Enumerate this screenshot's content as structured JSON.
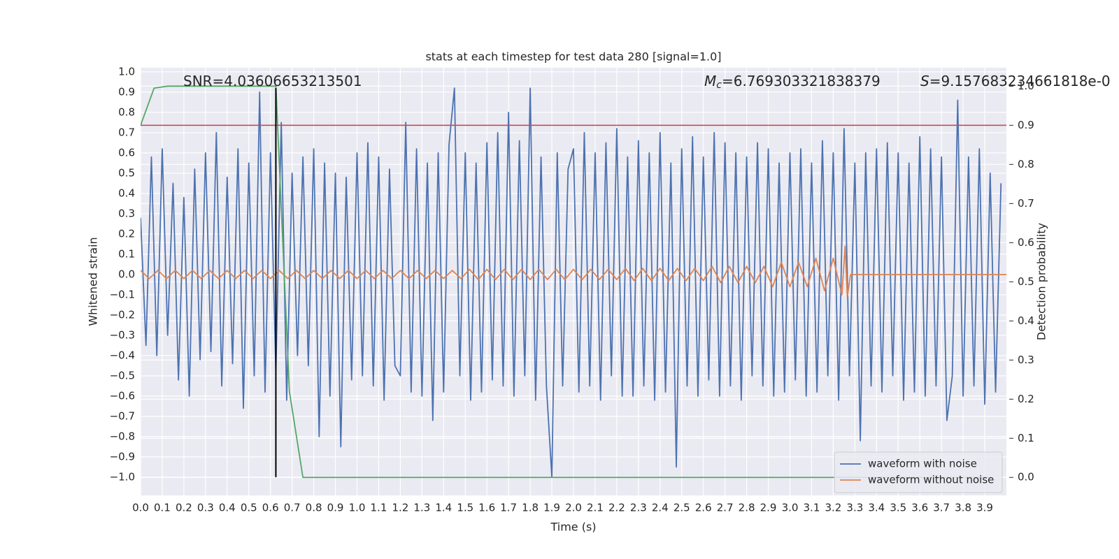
{
  "chart_data": {
    "type": "line",
    "title": "stats at each timestep for test data 280 [signal=1.0]",
    "xlabel": "Time (s)",
    "ylabel": "Whitened strain",
    "y2label": "Detection probability",
    "grid": true,
    "legend": "lower right",
    "xlim": [
      0,
      4.0
    ],
    "ylim": [
      -1.09,
      1.02
    ],
    "y2lim": [
      -0.046,
      1.047
    ],
    "xticks": [
      {
        "value": 0,
        "label": "0.0"
      },
      {
        "value": 0.1,
        "label": "0.1"
      },
      {
        "value": 0.2,
        "label": "0.2"
      },
      {
        "value": 0.3,
        "label": "0.3"
      },
      {
        "value": 0.4,
        "label": "0.4"
      },
      {
        "value": 0.5,
        "label": "0.5"
      },
      {
        "value": 0.6,
        "label": "0.6"
      },
      {
        "value": 0.7,
        "label": "0.7"
      },
      {
        "value": 0.8,
        "label": "0.8"
      },
      {
        "value": 0.9,
        "label": "0.9"
      },
      {
        "value": 1,
        "label": "1.0"
      },
      {
        "value": 1.1,
        "label": "1.1"
      },
      {
        "value": 1.2,
        "label": "1.2"
      },
      {
        "value": 1.3,
        "label": "1.3"
      },
      {
        "value": 1.4,
        "label": "1.4"
      },
      {
        "value": 1.5,
        "label": "1.5"
      },
      {
        "value": 1.6,
        "label": "1.6"
      },
      {
        "value": 1.7,
        "label": "1.7"
      },
      {
        "value": 1.8,
        "label": "1.8"
      },
      {
        "value": 1.9,
        "label": "1.9"
      },
      {
        "value": 2,
        "label": "2.0"
      },
      {
        "value": 2.1,
        "label": "2.1"
      },
      {
        "value": 2.2,
        "label": "2.2"
      },
      {
        "value": 2.3,
        "label": "2.3"
      },
      {
        "value": 2.4,
        "label": "2.4"
      },
      {
        "value": 2.5,
        "label": "2.5"
      },
      {
        "value": 2.6,
        "label": "2.6"
      },
      {
        "value": 2.7,
        "label": "2.7"
      },
      {
        "value": 2.8,
        "label": "2.8"
      },
      {
        "value": 2.9,
        "label": "2.9"
      },
      {
        "value": 3,
        "label": "3.0"
      },
      {
        "value": 3.1,
        "label": "3.1"
      },
      {
        "value": 3.2,
        "label": "3.2"
      },
      {
        "value": 3.3,
        "label": "3.3"
      },
      {
        "value": 3.4,
        "label": "3.4"
      },
      {
        "value": 3.5,
        "label": "3.5"
      },
      {
        "value": 3.6,
        "label": "3.6"
      },
      {
        "value": 3.7,
        "label": "3.7"
      },
      {
        "value": 3.8,
        "label": "3.8"
      },
      {
        "value": 3.9,
        "label": "3.9"
      }
    ],
    "yticks": [
      {
        "value": -1,
        "label": "−1.0"
      },
      {
        "value": -0.9,
        "label": "−0.9"
      },
      {
        "value": -0.8,
        "label": "−0.8"
      },
      {
        "value": -0.7,
        "label": "−0.7"
      },
      {
        "value": -0.6,
        "label": "−0.6"
      },
      {
        "value": -0.5,
        "label": "−0.5"
      },
      {
        "value": -0.4,
        "label": "−0.4"
      },
      {
        "value": -0.3,
        "label": "−0.3"
      },
      {
        "value": -0.2,
        "label": "−0.2"
      },
      {
        "value": -0.1,
        "label": "−0.1"
      },
      {
        "value": 0,
        "label": "0.0"
      },
      {
        "value": 0.1,
        "label": "0.1"
      },
      {
        "value": 0.2,
        "label": "0.2"
      },
      {
        "value": 0.3,
        "label": "0.3"
      },
      {
        "value": 0.4,
        "label": "0.4"
      },
      {
        "value": 0.5,
        "label": "0.5"
      },
      {
        "value": 0.6,
        "label": "0.6"
      },
      {
        "value": 0.7,
        "label": "0.7"
      },
      {
        "value": 0.8,
        "label": "0.8"
      },
      {
        "value": 0.9,
        "label": "0.9"
      },
      {
        "value": 1,
        "label": "1.0"
      }
    ],
    "y2ticks": [
      {
        "value": 0,
        "label": "0.0"
      },
      {
        "value": 0.1,
        "label": "0.1"
      },
      {
        "value": 0.2,
        "label": "0.2"
      },
      {
        "value": 0.3,
        "label": "0.3"
      },
      {
        "value": 0.4,
        "label": "0.4"
      },
      {
        "value": 0.5,
        "label": "0.5"
      },
      {
        "value": 0.6,
        "label": "0.6"
      },
      {
        "value": 0.7,
        "label": "0.7"
      },
      {
        "value": 0.8,
        "label": "0.8"
      },
      {
        "value": 0.9,
        "label": "0.9"
      },
      {
        "value": 1,
        "label": "1.0"
      }
    ],
    "annotations": [
      {
        "text": "SNR=4.03606653213501"
      },
      {
        "symbol": "M",
        "subscript": "c",
        "text": "=6.769303321838379"
      },
      {
        "symbol": "S",
        "text": "=9.157683234661818e-0"
      }
    ],
    "series": [
      {
        "name": "waveform with noise",
        "color": "#4c72b0",
        "x": [
          0,
          0.025,
          0.05,
          0.075,
          0.1,
          0.125,
          0.15,
          0.175,
          0.2,
          0.225,
          0.25,
          0.275,
          0.3,
          0.325,
          0.35,
          0.375,
          0.4,
          0.425,
          0.45,
          0.475,
          0.5,
          0.525,
          0.55,
          0.575,
          0.6,
          0.625,
          0.65,
          0.675,
          0.7,
          0.725,
          0.75,
          0.775,
          0.8,
          0.825,
          0.85,
          0.875,
          0.9,
          0.925,
          0.95,
          0.975,
          1,
          1.025,
          1.05,
          1.075,
          1.1,
          1.125,
          1.15,
          1.175,
          1.2,
          1.225,
          1.25,
          1.275,
          1.3,
          1.325,
          1.35,
          1.375,
          1.4,
          1.425,
          1.45,
          1.475,
          1.5,
          1.525,
          1.55,
          1.575,
          1.6,
          1.625,
          1.65,
          1.675,
          1.7,
          1.725,
          1.75,
          1.775,
          1.8,
          1.825,
          1.85,
          1.875,
          1.9,
          1.925,
          1.95,
          1.975,
          2,
          2.025,
          2.05,
          2.075,
          2.1,
          2.125,
          2.15,
          2.175,
          2.2,
          2.225,
          2.25,
          2.275,
          2.3,
          2.325,
          2.35,
          2.375,
          2.4,
          2.425,
          2.45,
          2.475,
          2.5,
          2.525,
          2.55,
          2.575,
          2.6,
          2.625,
          2.65,
          2.675,
          2.7,
          2.725,
          2.75,
          2.775,
          2.8,
          2.825,
          2.85,
          2.875,
          2.9,
          2.925,
          2.95,
          2.975,
          3,
          3.025,
          3.05,
          3.075,
          3.1,
          3.125,
          3.15,
          3.175,
          3.2,
          3.225,
          3.25,
          3.275,
          3.3,
          3.325,
          3.35,
          3.375,
          3.4,
          3.425,
          3.45,
          3.475,
          3.5,
          3.525,
          3.55,
          3.575,
          3.6,
          3.625,
          3.65,
          3.675,
          3.7,
          3.725,
          3.75,
          3.775,
          3.8,
          3.825,
          3.85,
          3.875,
          3.9,
          3.925,
          3.95,
          3.975
        ],
        "values": [
          0.28,
          -0.35,
          0.58,
          -0.4,
          0.62,
          -0.3,
          0.45,
          -0.52,
          0.38,
          -0.6,
          0.52,
          -0.42,
          0.6,
          -0.38,
          0.7,
          -0.55,
          0.48,
          -0.44,
          0.62,
          -0.66,
          0.55,
          -0.5,
          0.9,
          -0.58,
          0.6,
          -0.48,
          0.75,
          -0.62,
          0.5,
          -0.4,
          0.58,
          -0.45,
          0.62,
          -0.8,
          0.55,
          -0.6,
          0.5,
          -0.85,
          0.48,
          -0.52,
          0.6,
          -0.5,
          0.65,
          -0.55,
          0.58,
          -0.62,
          0.52,
          -0.45,
          -0.5,
          0.75,
          -0.58,
          0.62,
          -0.6,
          0.55,
          -0.72,
          0.6,
          -0.58,
          0.64,
          0.92,
          -0.5,
          0.6,
          -0.62,
          0.55,
          -0.58,
          0.65,
          -0.52,
          0.7,
          -0.55,
          0.8,
          -0.6,
          0.66,
          -0.5,
          0.92,
          -0.62,
          0.58,
          -0.55,
          -1.0,
          0.6,
          -0.55,
          0.52,
          0.62,
          -0.58,
          0.7,
          -0.55,
          0.6,
          -0.62,
          0.65,
          -0.5,
          0.72,
          -0.6,
          0.58,
          -0.6,
          0.66,
          -0.55,
          0.6,
          -0.62,
          0.7,
          -0.58,
          0.55,
          -0.95,
          0.62,
          -0.55,
          0.68,
          -0.6,
          0.58,
          -0.52,
          0.7,
          -0.6,
          0.65,
          -0.55,
          0.6,
          -0.62,
          0.58,
          -0.5,
          0.65,
          -0.55,
          0.62,
          -0.6,
          0.55,
          -0.58,
          0.6,
          -0.52,
          0.62,
          -0.6,
          0.55,
          -0.58,
          0.66,
          -0.5,
          0.6,
          -0.62,
          0.72,
          -0.5,
          0.55,
          -0.82,
          0.6,
          -0.55,
          0.62,
          -0.58,
          0.65,
          -0.5,
          0.6,
          -0.62,
          0.55,
          -0.58,
          0.68,
          -0.6,
          0.62,
          -0.55,
          0.58,
          -0.72,
          -0.5,
          0.86,
          -0.6,
          0.58,
          -0.55,
          0.62,
          -0.64,
          0.5,
          -0.58,
          0.45
        ]
      },
      {
        "name": "waveform without noise",
        "color": "#dd8452",
        "x": [
          0,
          0.04,
          0.08,
          0.12,
          0.16,
          0.2,
          0.24,
          0.28,
          0.32,
          0.36,
          0.4,
          0.44,
          0.48,
          0.52,
          0.56,
          0.6,
          0.64,
          0.68,
          0.72,
          0.76,
          0.8,
          0.84,
          0.88,
          0.92,
          0.96,
          1,
          1.04,
          1.08,
          1.12,
          1.16,
          1.2,
          1.24,
          1.28,
          1.32,
          1.36,
          1.4,
          1.44,
          1.48,
          1.52,
          1.56,
          1.6,
          1.64,
          1.68,
          1.72,
          1.76,
          1.8,
          1.84,
          1.88,
          1.92,
          1.96,
          2,
          2.04,
          2.08,
          2.12,
          2.16,
          2.2,
          2.24,
          2.28,
          2.32,
          2.36,
          2.4,
          2.44,
          2.48,
          2.52,
          2.56,
          2.6,
          2.64,
          2.68,
          2.72,
          2.76,
          2.8,
          2.84,
          2.88,
          2.92,
          2.96,
          3,
          3.04,
          3.08,
          3.12,
          3.16,
          3.2,
          3.24,
          3.255,
          3.265,
          3.28,
          4.0
        ],
        "values": [
          0.02,
          -0.02,
          0.02,
          -0.02,
          0.02,
          -0.02,
          0.02,
          -0.02,
          0.02,
          -0.02,
          0.02,
          -0.02,
          0.02,
          -0.02,
          0.02,
          -0.02,
          0.02,
          -0.02,
          0.02,
          -0.02,
          0.02,
          -0.02,
          0.02,
          -0.02,
          0.02,
          -0.02,
          0.02,
          -0.02,
          0.02,
          -0.02,
          0.02,
          -0.02,
          0.02,
          -0.02,
          0.02,
          -0.02,
          0.02,
          -0.02,
          0.025,
          -0.025,
          0.025,
          -0.025,
          0.025,
          -0.025,
          0.025,
          -0.025,
          0.025,
          -0.025,
          0.025,
          -0.025,
          0.025,
          -0.025,
          0.025,
          -0.025,
          0.025,
          -0.025,
          0.03,
          -0.03,
          0.03,
          -0.03,
          0.03,
          -0.03,
          0.03,
          -0.03,
          0.03,
          -0.03,
          0.04,
          -0.04,
          0.04,
          -0.04,
          0.04,
          -0.04,
          0.04,
          -0.06,
          0.06,
          -0.06,
          0.06,
          -0.06,
          0.08,
          -0.08,
          0.08,
          -0.1,
          0.14,
          -0.11,
          0,
          0
        ]
      },
      {
        "color": "#55a868",
        "axis": "y2",
        "x": [
          0,
          0.0625,
          0.125,
          0.1875,
          0.25,
          0.3125,
          0.375,
          0.4375,
          0.5,
          0.5625,
          0.625,
          0.6875,
          0.75,
          0.8125,
          0.875,
          0.9375,
          1,
          1.0625,
          1.125,
          1.1875,
          1.25,
          1.3125,
          1.375,
          1.4375,
          1.5,
          1.5625,
          1.625,
          1.6875,
          1.75,
          1.8125,
          1.875,
          1.9375,
          2,
          2.0625,
          2.125,
          2.1875,
          2.25,
          2.3125,
          2.375,
          2.4375,
          2.5,
          2.5625,
          2.625,
          2.6875,
          2.75,
          2.8125,
          2.875,
          2.9375,
          3,
          3.0625,
          3.125,
          3.1875,
          3.25,
          3.3125,
          3.375,
          3.4375,
          3.5,
          3.5625,
          3.625,
          3.6875,
          3.75,
          3.8125,
          3.875,
          3.9375
        ],
        "values": [
          0.9,
          0.995,
          1,
          1,
          1,
          1,
          1,
          1,
          1,
          1,
          1,
          0.22,
          0,
          0,
          0,
          0,
          0,
          0,
          0,
          0,
          0,
          0,
          0,
          0,
          0,
          0,
          0,
          0,
          0,
          0,
          0,
          0,
          0,
          0,
          0,
          0,
          0,
          0,
          0,
          0,
          0,
          0,
          0,
          0,
          0,
          0,
          0,
          0,
          0,
          0,
          0,
          0,
          0,
          0,
          0,
          0,
          0,
          0,
          0,
          0,
          0,
          0,
          0,
          0
        ]
      }
    ],
    "threshold": {
      "value": 0.9,
      "axis": "y2",
      "color": "#c44e52"
    },
    "marker_line": {
      "x": 0.625,
      "y": [
        -1.0,
        0.92
      ],
      "color": "#000000"
    }
  }
}
